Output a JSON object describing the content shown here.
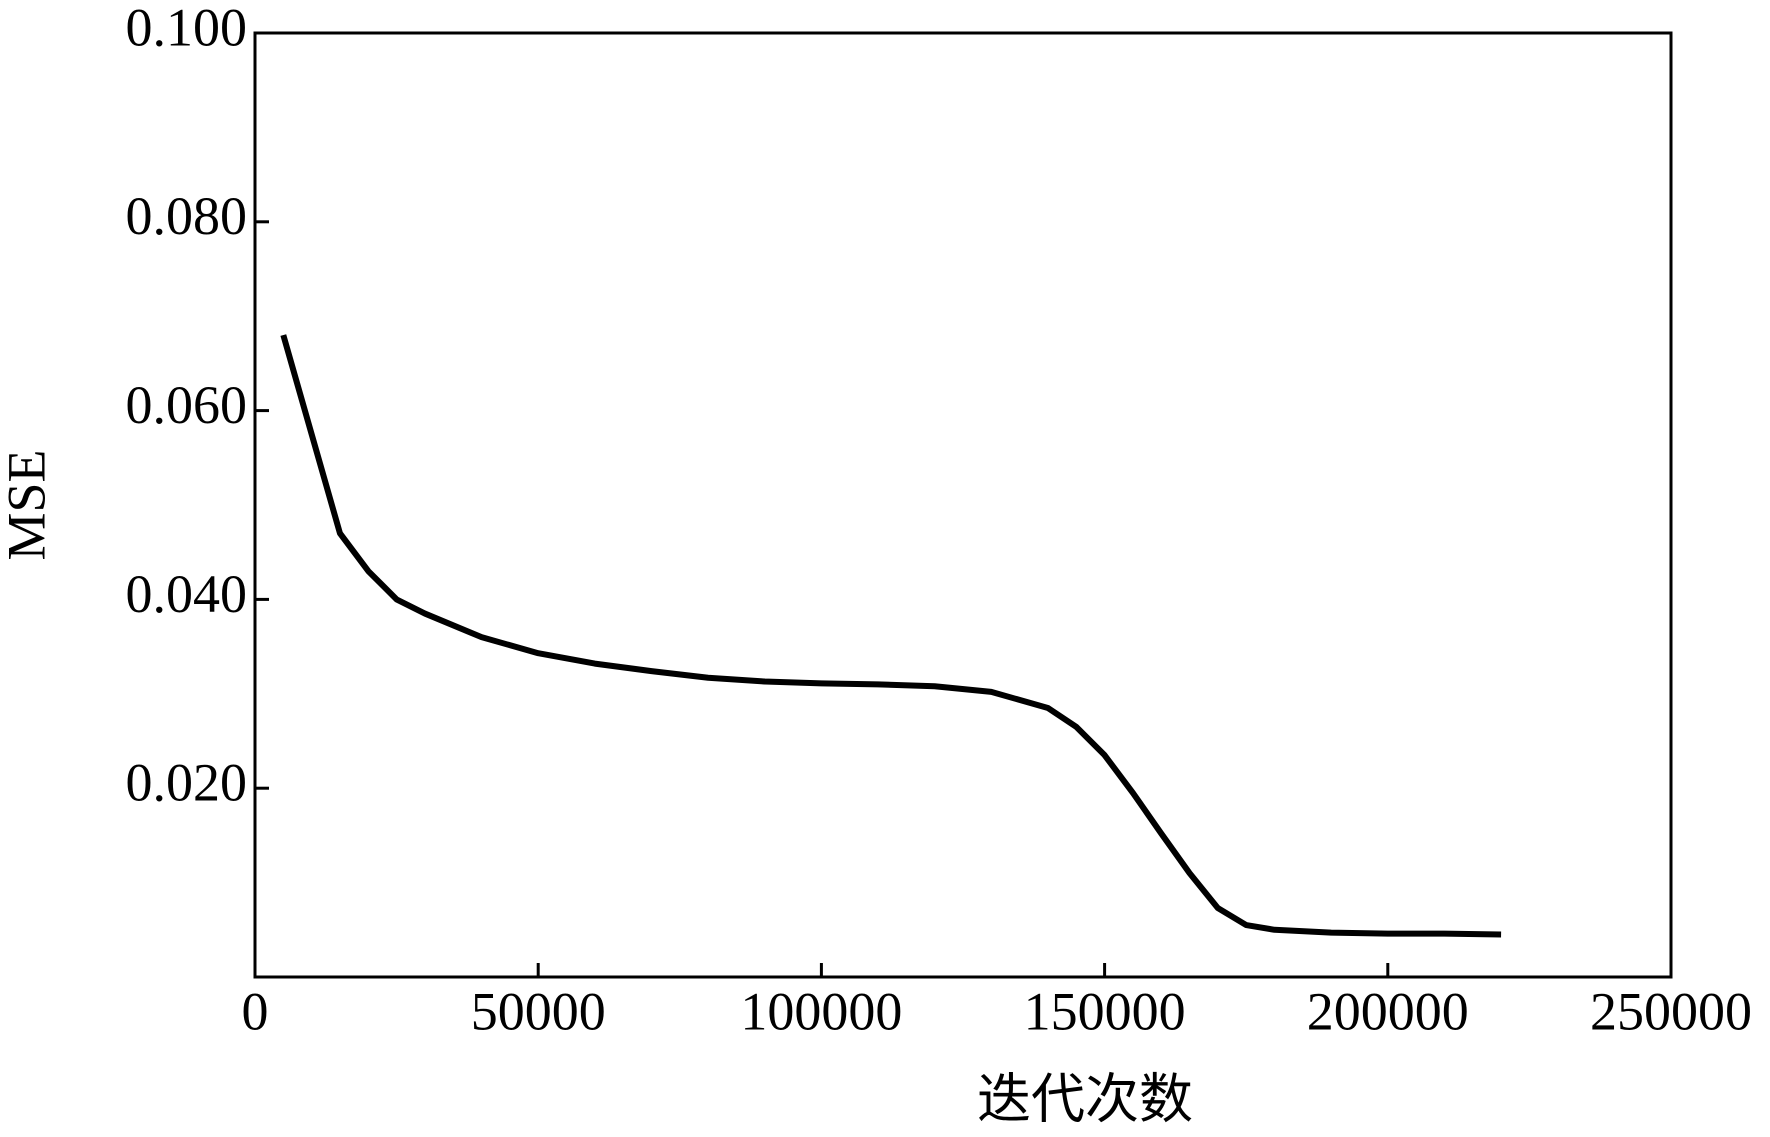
{
  "chart_data": {
    "type": "line",
    "x_label": "迭代次数",
    "y_label": "MSE",
    "x": [
      5000,
      15000,
      20000,
      25000,
      30000,
      40000,
      50000,
      60000,
      70000,
      80000,
      90000,
      100000,
      110000,
      120000,
      130000,
      140000,
      145000,
      150000,
      155000,
      160000,
      165000,
      170000,
      175000,
      180000,
      190000,
      200000,
      210000,
      220000
    ],
    "series": [
      {
        "color": "#000000",
        "values": [
          0.068,
          0.047,
          0.043,
          0.04,
          0.0385,
          0.036,
          0.0343,
          0.0332,
          0.0324,
          0.0317,
          0.0313,
          0.0311,
          0.031,
          0.0308,
          0.0302,
          0.0285,
          0.0265,
          0.0235,
          0.0195,
          0.0152,
          0.011,
          0.0073,
          0.0055,
          0.005,
          0.0047,
          0.0046,
          0.0046,
          0.0045
        ]
      }
    ],
    "xlim": [
      0,
      250000
    ],
    "xticks": [
      0,
      50000,
      100000,
      150000,
      200000,
      250000
    ],
    "ylim": [
      0,
      0.1
    ],
    "yticks": [
      {
        "value": 0.02,
        "label": "0.020"
      },
      {
        "value": 0.04,
        "label": "0.040"
      },
      {
        "value": 0.06,
        "label": "0.060"
      },
      {
        "value": 0.08,
        "label": "0.080"
      },
      {
        "value": 0.1,
        "label": "0.100"
      }
    ],
    "grid": false
  }
}
